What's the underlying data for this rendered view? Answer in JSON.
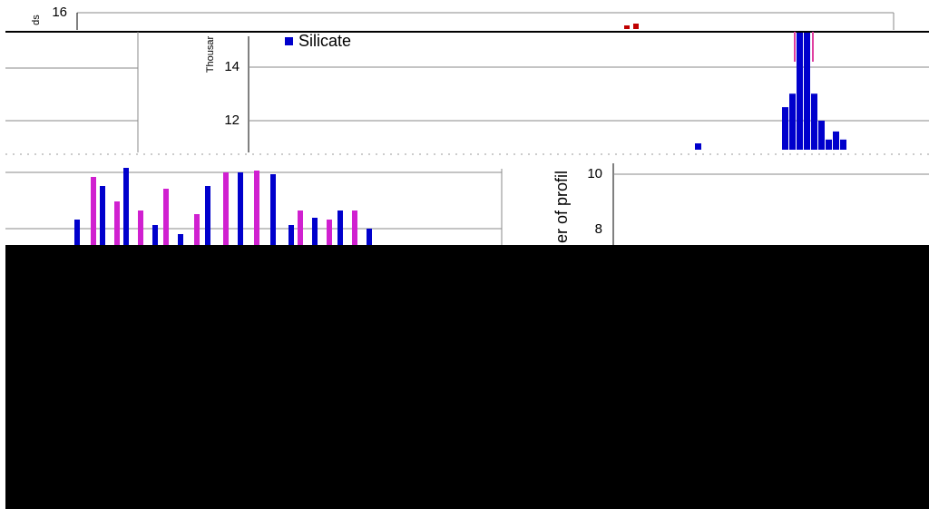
{
  "fragments": {
    "top_left": {
      "axis_title": "ds",
      "ticks": [
        16
      ]
    },
    "upper_chart": {
      "axis_title": "Thousar",
      "ticks": [
        14,
        12
      ],
      "legend": "Silicate"
    },
    "histogram": {
      "values": [
        12.5,
        13.0,
        15.3,
        15.3,
        13.0,
        12.0,
        11.3,
        11.6,
        11.3
      ],
      "color": "#0000cc"
    },
    "lower_right": {
      "axis_title": "er of profil",
      "ticks": [
        10,
        8
      ]
    }
  }
}
